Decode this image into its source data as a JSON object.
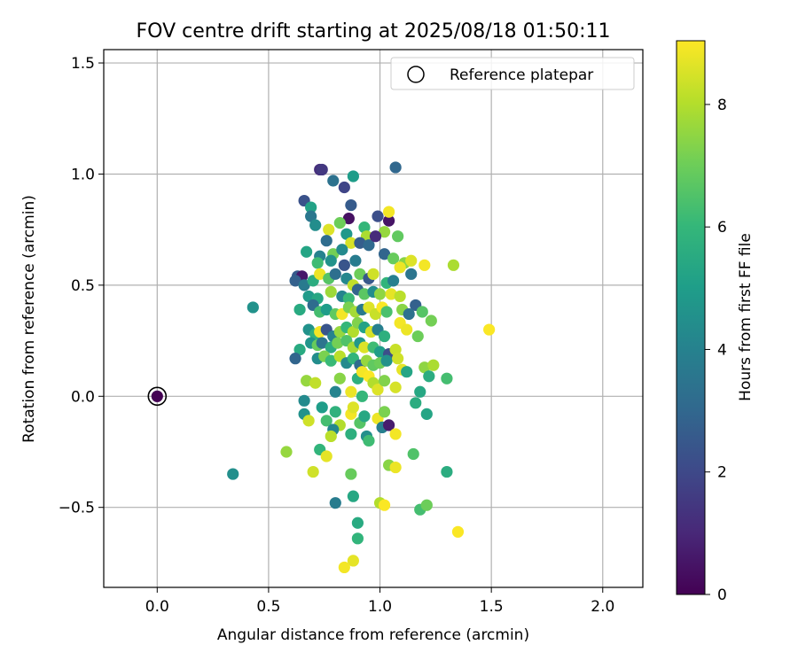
{
  "chart_data": {
    "type": "scatter",
    "title": "FOV centre drift starting at 2025/08/18 01:50:11",
    "xlabel": "Angular distance from reference (arcmin)",
    "ylabel": "Rotation from reference (arcmin)",
    "xlim": [
      -0.24,
      2.18
    ],
    "ylim": [
      -0.86,
      1.56
    ],
    "x_ticks": [
      0.0,
      0.5,
      1.0,
      1.5,
      2.0
    ],
    "x_tick_labels": [
      "0.0",
      "0.5",
      "1.0",
      "1.5",
      "2.0"
    ],
    "y_ticks": [
      -0.5,
      0.0,
      0.5,
      1.0,
      1.5
    ],
    "y_tick_labels": [
      "−0.5",
      "0.0",
      "0.5",
      "1.0",
      "1.5"
    ],
    "grid": true,
    "legend": {
      "placement": "top-right",
      "label": "Reference platepar"
    },
    "colorbar": {
      "label": "Hours from first FF file",
      "range": [
        0,
        9.04
      ],
      "ticks": [
        0,
        2,
        4,
        6,
        8
      ],
      "tick_labels": [
        "0",
        "2",
        "4",
        "6",
        "8"
      ],
      "colormap": "viridis",
      "stops": [
        "#440154",
        "#482878",
        "#3e4989",
        "#31688e",
        "#26828e",
        "#1f9e89",
        "#35b779",
        "#6ece58",
        "#b5de2b",
        "#fde725"
      ]
    },
    "reference_point": {
      "x": 0.0,
      "y": 0.0,
      "hours": 0.0
    },
    "series": [
      {
        "points": [
          {
            "x": 0.73,
            "y": 1.02,
            "h": 1.2
          },
          {
            "x": 0.74,
            "y": 1.02,
            "h": 1.5
          },
          {
            "x": 1.07,
            "y": 1.03,
            "h": 3.0
          },
          {
            "x": 0.88,
            "y": 0.99,
            "h": 5.0
          },
          {
            "x": 0.79,
            "y": 0.97,
            "h": 3.4
          },
          {
            "x": 0.84,
            "y": 0.94,
            "h": 1.9
          },
          {
            "x": 0.66,
            "y": 0.88,
            "h": 2.3
          },
          {
            "x": 0.69,
            "y": 0.85,
            "h": 5.2
          },
          {
            "x": 0.87,
            "y": 0.86,
            "h": 2.6
          },
          {
            "x": 0.69,
            "y": 0.81,
            "h": 3.6
          },
          {
            "x": 0.86,
            "y": 0.8,
            "h": 0.4
          },
          {
            "x": 0.99,
            "y": 0.81,
            "h": 2.2
          },
          {
            "x": 1.04,
            "y": 0.79,
            "h": 0.5
          },
          {
            "x": 1.04,
            "y": 0.83,
            "h": 8.9
          },
          {
            "x": 0.82,
            "y": 0.78,
            "h": 7.0
          },
          {
            "x": 0.71,
            "y": 0.77,
            "h": 4.4
          },
          {
            "x": 0.77,
            "y": 0.75,
            "h": 8.6
          },
          {
            "x": 0.85,
            "y": 0.73,
            "h": 4.8
          },
          {
            "x": 0.93,
            "y": 0.76,
            "h": 6.0
          },
          {
            "x": 1.02,
            "y": 0.74,
            "h": 7.6
          },
          {
            "x": 0.94,
            "y": 0.72,
            "h": 7.9
          },
          {
            "x": 1.08,
            "y": 0.72,
            "h": 6.8
          },
          {
            "x": 0.76,
            "y": 0.7,
            "h": 3.2
          },
          {
            "x": 0.87,
            "y": 0.69,
            "h": 8.5
          },
          {
            "x": 0.91,
            "y": 0.69,
            "h": 2.7
          },
          {
            "x": 0.95,
            "y": 0.68,
            "h": 3.1
          },
          {
            "x": 0.98,
            "y": 0.72,
            "h": 1.1
          },
          {
            "x": 0.67,
            "y": 0.65,
            "h": 5.3
          },
          {
            "x": 0.73,
            "y": 0.63,
            "h": 4.0
          },
          {
            "x": 0.79,
            "y": 0.64,
            "h": 7.1
          },
          {
            "x": 0.83,
            "y": 0.66,
            "h": 4.3
          },
          {
            "x": 0.89,
            "y": 0.61,
            "h": 3.8
          },
          {
            "x": 1.02,
            "y": 0.64,
            "h": 2.9
          },
          {
            "x": 1.06,
            "y": 0.62,
            "h": 6.9
          },
          {
            "x": 1.11,
            "y": 0.6,
            "h": 7.4
          },
          {
            "x": 1.14,
            "y": 0.61,
            "h": 8.6
          },
          {
            "x": 1.2,
            "y": 0.59,
            "h": 8.9
          },
          {
            "x": 1.33,
            "y": 0.59,
            "h": 7.9
          },
          {
            "x": 0.72,
            "y": 0.6,
            "h": 6.2
          },
          {
            "x": 0.78,
            "y": 0.61,
            "h": 4.6
          },
          {
            "x": 0.84,
            "y": 0.59,
            "h": 2.4
          },
          {
            "x": 0.63,
            "y": 0.54,
            "h": 2.6
          },
          {
            "x": 0.65,
            "y": 0.54,
            "h": 0.6
          },
          {
            "x": 0.62,
            "y": 0.52,
            "h": 2.8
          },
          {
            "x": 0.66,
            "y": 0.5,
            "h": 3.7
          },
          {
            "x": 0.7,
            "y": 0.52,
            "h": 5.6
          },
          {
            "x": 0.73,
            "y": 0.55,
            "h": 8.8
          },
          {
            "x": 0.77,
            "y": 0.53,
            "h": 6.6
          },
          {
            "x": 0.8,
            "y": 0.55,
            "h": 3.3
          },
          {
            "x": 0.85,
            "y": 0.53,
            "h": 4.2
          },
          {
            "x": 0.88,
            "y": 0.5,
            "h": 8.2
          },
          {
            "x": 0.91,
            "y": 0.55,
            "h": 7.0
          },
          {
            "x": 0.95,
            "y": 0.53,
            "h": 2.5
          },
          {
            "x": 0.97,
            "y": 0.55,
            "h": 8.4
          },
          {
            "x": 1.03,
            "y": 0.51,
            "h": 5.9
          },
          {
            "x": 1.06,
            "y": 0.52,
            "h": 3.9
          },
          {
            "x": 1.09,
            "y": 0.58,
            "h": 8.8
          },
          {
            "x": 1.14,
            "y": 0.55,
            "h": 3.5
          },
          {
            "x": 0.68,
            "y": 0.45,
            "h": 4.9
          },
          {
            "x": 0.72,
            "y": 0.44,
            "h": 5.4
          },
          {
            "x": 0.78,
            "y": 0.47,
            "h": 7.7
          },
          {
            "x": 0.83,
            "y": 0.45,
            "h": 4.1
          },
          {
            "x": 0.86,
            "y": 0.44,
            "h": 6.1
          },
          {
            "x": 0.9,
            "y": 0.48,
            "h": 2.9
          },
          {
            "x": 0.93,
            "y": 0.46,
            "h": 6.7
          },
          {
            "x": 0.97,
            "y": 0.47,
            "h": 4.4
          },
          {
            "x": 1.0,
            "y": 0.46,
            "h": 7.5
          },
          {
            "x": 1.05,
            "y": 0.46,
            "h": 8.7
          },
          {
            "x": 1.09,
            "y": 0.45,
            "h": 8.1
          },
          {
            "x": 1.16,
            "y": 0.41,
            "h": 2.8
          },
          {
            "x": 0.43,
            "y": 0.4,
            "h": 4.6
          },
          {
            "x": 0.64,
            "y": 0.39,
            "h": 5.5
          },
          {
            "x": 0.7,
            "y": 0.41,
            "h": 3.2
          },
          {
            "x": 0.73,
            "y": 0.38,
            "h": 6.3
          },
          {
            "x": 0.76,
            "y": 0.39,
            "h": 5.0
          },
          {
            "x": 0.8,
            "y": 0.37,
            "h": 6.8
          },
          {
            "x": 0.83,
            "y": 0.37,
            "h": 8.9
          },
          {
            "x": 0.86,
            "y": 0.4,
            "h": 7.2
          },
          {
            "x": 0.89,
            "y": 0.38,
            "h": 7.8
          },
          {
            "x": 0.92,
            "y": 0.39,
            "h": 3.7
          },
          {
            "x": 0.95,
            "y": 0.4,
            "h": 8.6
          },
          {
            "x": 0.98,
            "y": 0.37,
            "h": 8.3
          },
          {
            "x": 1.01,
            "y": 0.4,
            "h": 9.0
          },
          {
            "x": 1.03,
            "y": 0.38,
            "h": 6.4
          },
          {
            "x": 1.1,
            "y": 0.39,
            "h": 7.4
          },
          {
            "x": 1.13,
            "y": 0.37,
            "h": 3.4
          },
          {
            "x": 1.19,
            "y": 0.38,
            "h": 6.6
          },
          {
            "x": 1.23,
            "y": 0.34,
            "h": 7.1
          },
          {
            "x": 0.68,
            "y": 0.3,
            "h": 4.6
          },
          {
            "x": 0.71,
            "y": 0.28,
            "h": 5.8
          },
          {
            "x": 0.73,
            "y": 0.29,
            "h": 8.9
          },
          {
            "x": 0.76,
            "y": 0.3,
            "h": 2.4
          },
          {
            "x": 0.79,
            "y": 0.27,
            "h": 4.0
          },
          {
            "x": 0.82,
            "y": 0.29,
            "h": 7.6
          },
          {
            "x": 0.85,
            "y": 0.31,
            "h": 6.0
          },
          {
            "x": 0.88,
            "y": 0.29,
            "h": 8.0
          },
          {
            "x": 0.9,
            "y": 0.33,
            "h": 7.3
          },
          {
            "x": 0.93,
            "y": 0.31,
            "h": 5.2
          },
          {
            "x": 0.96,
            "y": 0.29,
            "h": 8.5
          },
          {
            "x": 0.99,
            "y": 0.3,
            "h": 3.9
          },
          {
            "x": 1.02,
            "y": 0.27,
            "h": 5.7
          },
          {
            "x": 1.09,
            "y": 0.33,
            "h": 8.9
          },
          {
            "x": 1.12,
            "y": 0.3,
            "h": 8.8
          },
          {
            "x": 1.17,
            "y": 0.27,
            "h": 7.0
          },
          {
            "x": 1.49,
            "y": 0.3,
            "h": 9.0
          },
          {
            "x": 0.69,
            "y": 0.24,
            "h": 4.7
          },
          {
            "x": 0.72,
            "y": 0.23,
            "h": 6.9
          },
          {
            "x": 0.74,
            "y": 0.24,
            "h": 3.5
          },
          {
            "x": 0.78,
            "y": 0.22,
            "h": 5.6
          },
          {
            "x": 0.81,
            "y": 0.24,
            "h": 7.1
          },
          {
            "x": 0.85,
            "y": 0.25,
            "h": 6.5
          },
          {
            "x": 0.88,
            "y": 0.22,
            "h": 7.8
          },
          {
            "x": 0.91,
            "y": 0.24,
            "h": 4.8
          },
          {
            "x": 0.93,
            "y": 0.22,
            "h": 8.6
          },
          {
            "x": 0.97,
            "y": 0.22,
            "h": 6.2
          },
          {
            "x": 1.0,
            "y": 0.2,
            "h": 5.0
          },
          {
            "x": 1.04,
            "y": 0.19,
            "h": 2.2
          },
          {
            "x": 1.07,
            "y": 0.21,
            "h": 8.3
          },
          {
            "x": 0.64,
            "y": 0.21,
            "h": 5.5
          },
          {
            "x": 0.62,
            "y": 0.17,
            "h": 2.9
          },
          {
            "x": 0.72,
            "y": 0.17,
            "h": 4.4
          },
          {
            "x": 0.75,
            "y": 0.18,
            "h": 7.2
          },
          {
            "x": 0.78,
            "y": 0.16,
            "h": 6.1
          },
          {
            "x": 0.82,
            "y": 0.18,
            "h": 8.1
          },
          {
            "x": 0.85,
            "y": 0.15,
            "h": 4.3
          },
          {
            "x": 0.88,
            "y": 0.17,
            "h": 5.9
          },
          {
            "x": 0.91,
            "y": 0.14,
            "h": 3.2
          },
          {
            "x": 0.94,
            "y": 0.16,
            "h": 7.6
          },
          {
            "x": 0.97,
            "y": 0.14,
            "h": 6.8
          },
          {
            "x": 1.0,
            "y": 0.15,
            "h": 7.0
          },
          {
            "x": 1.03,
            "y": 0.16,
            "h": 4.6
          },
          {
            "x": 1.08,
            "y": 0.17,
            "h": 8.4
          },
          {
            "x": 1.1,
            "y": 0.12,
            "h": 8.7
          },
          {
            "x": 1.12,
            "y": 0.11,
            "h": 5.3
          },
          {
            "x": 1.2,
            "y": 0.13,
            "h": 7.5
          },
          {
            "x": 1.22,
            "y": 0.09,
            "h": 5.6
          },
          {
            "x": 1.24,
            "y": 0.14,
            "h": 7.9
          },
          {
            "x": 1.3,
            "y": 0.08,
            "h": 6.3
          },
          {
            "x": 0.67,
            "y": 0.07,
            "h": 7.6
          },
          {
            "x": 0.71,
            "y": 0.06,
            "h": 8.2
          },
          {
            "x": 0.8,
            "y": 0.02,
            "h": 4.1
          },
          {
            "x": 0.82,
            "y": 0.08,
            "h": 7.4
          },
          {
            "x": 0.87,
            "y": 0.02,
            "h": 8.8
          },
          {
            "x": 0.9,
            "y": 0.08,
            "h": 5.7
          },
          {
            "x": 0.92,
            "y": 0.11,
            "h": 8.9
          },
          {
            "x": 0.95,
            "y": 0.09,
            "h": 9.0
          },
          {
            "x": 0.97,
            "y": 0.06,
            "h": 8.0
          },
          {
            "x": 0.99,
            "y": 0.03,
            "h": 8.6
          },
          {
            "x": 1.02,
            "y": 0.07,
            "h": 7.3
          },
          {
            "x": 1.07,
            "y": 0.04,
            "h": 8.5
          },
          {
            "x": 1.18,
            "y": 0.02,
            "h": 5.4
          },
          {
            "x": 0.66,
            "y": -0.02,
            "h": 4.3
          },
          {
            "x": 0.92,
            "y": 0.0,
            "h": 6.0
          },
          {
            "x": 1.16,
            "y": -0.03,
            "h": 5.6
          },
          {
            "x": 0.66,
            "y": -0.08,
            "h": 4.6
          },
          {
            "x": 0.68,
            "y": -0.11,
            "h": 8.4
          },
          {
            "x": 0.74,
            "y": -0.05,
            "h": 5.0
          },
          {
            "x": 0.76,
            "y": -0.11,
            "h": 6.3
          },
          {
            "x": 0.8,
            "y": -0.07,
            "h": 5.8
          },
          {
            "x": 0.82,
            "y": -0.13,
            "h": 8.0
          },
          {
            "x": 0.79,
            "y": -0.15,
            "h": 4.2
          },
          {
            "x": 0.87,
            "y": -0.08,
            "h": 8.9
          },
          {
            "x": 0.88,
            "y": -0.05,
            "h": 8.6
          },
          {
            "x": 0.91,
            "y": -0.12,
            "h": 6.6
          },
          {
            "x": 0.93,
            "y": -0.09,
            "h": 5.4
          },
          {
            "x": 0.99,
            "y": -0.1,
            "h": 8.8
          },
          {
            "x": 1.01,
            "y": -0.14,
            "h": 3.9
          },
          {
            "x": 1.02,
            "y": -0.07,
            "h": 7.2
          },
          {
            "x": 1.04,
            "y": -0.13,
            "h": 0.7
          },
          {
            "x": 1.07,
            "y": -0.17,
            "h": 8.9
          },
          {
            "x": 1.21,
            "y": -0.08,
            "h": 5.3
          },
          {
            "x": 0.87,
            "y": -0.17,
            "h": 5.7
          },
          {
            "x": 0.94,
            "y": -0.18,
            "h": 4.5
          },
          {
            "x": 0.95,
            "y": -0.2,
            "h": 6.2
          },
          {
            "x": 0.78,
            "y": -0.18,
            "h": 8.1
          },
          {
            "x": 0.73,
            "y": -0.24,
            "h": 5.9
          },
          {
            "x": 0.76,
            "y": -0.27,
            "h": 8.7
          },
          {
            "x": 0.58,
            "y": -0.25,
            "h": 7.6
          },
          {
            "x": 1.15,
            "y": -0.26,
            "h": 6.5
          },
          {
            "x": 1.04,
            "y": -0.31,
            "h": 7.4
          },
          {
            "x": 1.07,
            "y": -0.32,
            "h": 8.8
          },
          {
            "x": 0.7,
            "y": -0.34,
            "h": 8.4
          },
          {
            "x": 0.87,
            "y": -0.35,
            "h": 6.9
          },
          {
            "x": 1.3,
            "y": -0.34,
            "h": 5.6
          },
          {
            "x": 0.34,
            "y": -0.35,
            "h": 4.5
          },
          {
            "x": 0.88,
            "y": -0.45,
            "h": 5.4
          },
          {
            "x": 0.8,
            "y": -0.48,
            "h": 3.8
          },
          {
            "x": 1.0,
            "y": -0.48,
            "h": 8.0
          },
          {
            "x": 1.02,
            "y": -0.49,
            "h": 9.0
          },
          {
            "x": 1.18,
            "y": -0.51,
            "h": 6.3
          },
          {
            "x": 1.21,
            "y": -0.49,
            "h": 7.0
          },
          {
            "x": 0.9,
            "y": -0.57,
            "h": 5.5
          },
          {
            "x": 1.35,
            "y": -0.61,
            "h": 9.0
          },
          {
            "x": 0.9,
            "y": -0.64,
            "h": 5.9
          },
          {
            "x": 0.88,
            "y": -0.74,
            "h": 8.7
          },
          {
            "x": 0.84,
            "y": -0.77,
            "h": 8.9
          }
        ]
      }
    ]
  }
}
